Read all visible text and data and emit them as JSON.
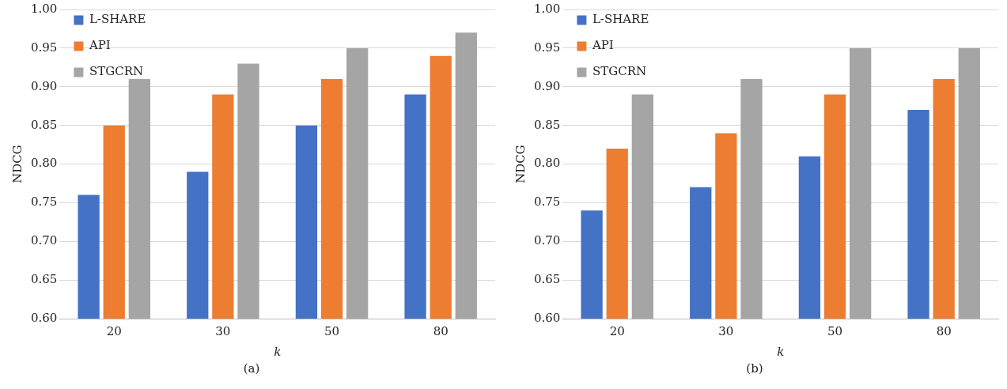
{
  "chart_data": [
    {
      "type": "bar",
      "xlabel": "k",
      "ylabel": "NDCG",
      "categories": [
        "20",
        "30",
        "50",
        "80"
      ],
      "annotations": [
        "(a)"
      ],
      "series": [
        {
          "name": "L-SHARE",
          "color": "#4472c4",
          "values": [
            0.76,
            0.79,
            0.85,
            0.89
          ]
        },
        {
          "name": "API",
          "color": "#ed7d31",
          "values": [
            0.85,
            0.89,
            0.91,
            0.94
          ]
        },
        {
          "name": "STGCRN",
          "color": "#a5a5a5",
          "values": [
            0.91,
            0.93,
            0.95,
            0.97
          ]
        }
      ],
      "ylim": [
        0.6,
        1.0
      ],
      "yticks": [
        {
          "value": 0.6,
          "label": "0.60"
        },
        {
          "value": 0.65,
          "label": "0.65"
        },
        {
          "value": 0.7,
          "label": "0.70"
        },
        {
          "value": 0.75,
          "label": "0.75"
        },
        {
          "value": 0.8,
          "label": "0.80"
        },
        {
          "value": 0.85,
          "label": "0.85"
        },
        {
          "value": 0.9,
          "label": "0.90"
        },
        {
          "value": 0.95,
          "label": "0.95"
        },
        {
          "value": 1.0,
          "label": "1.00"
        }
      ],
      "grid": "y",
      "legend": "top left"
    },
    {
      "type": "bar",
      "xlabel": "k",
      "ylabel": "NDCG",
      "categories": [
        "20",
        "30",
        "50",
        "80"
      ],
      "annotations": [
        "(b)"
      ],
      "series": [
        {
          "name": "L-SHARE",
          "color": "#4472c4",
          "values": [
            0.74,
            0.77,
            0.81,
            0.87
          ]
        },
        {
          "name": "API",
          "color": "#ed7d31",
          "values": [
            0.82,
            0.84,
            0.89,
            0.91
          ]
        },
        {
          "name": "STGCRN",
          "color": "#a5a5a5",
          "values": [
            0.89,
            0.91,
            0.95,
            0.95
          ]
        }
      ],
      "ylim": [
        0.6,
        1.0
      ],
      "yticks": [
        {
          "value": 0.6,
          "label": "0.60"
        },
        {
          "value": 0.65,
          "label": "0.65"
        },
        {
          "value": 0.7,
          "label": "0.70"
        },
        {
          "value": 0.75,
          "label": "0.75"
        },
        {
          "value": 0.8,
          "label": "0.80"
        },
        {
          "value": 0.85,
          "label": "0.85"
        },
        {
          "value": 0.9,
          "label": "0.90"
        },
        {
          "value": 0.95,
          "label": "0.95"
        },
        {
          "value": 1.0,
          "label": "1.00"
        }
      ],
      "grid": "y",
      "legend": "top left"
    }
  ]
}
